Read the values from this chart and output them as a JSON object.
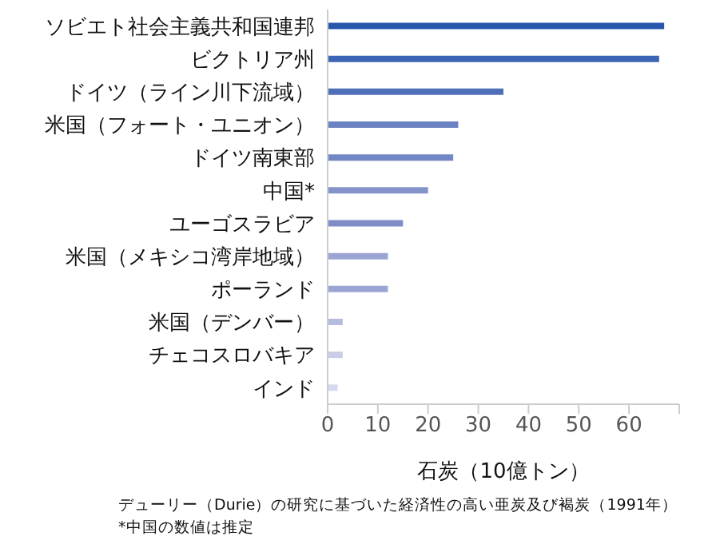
{
  "chart_data": {
    "type": "bar",
    "orientation": "horizontal",
    "categories": [
      "ソビエト社会主義共和国連邦",
      "ビクトリア州",
      "ドイツ（ライン川下流域）",
      "米国（フォート・ユニオン）",
      "ドイツ南東部",
      "中国*",
      "ユーゴスラビア",
      "米国（メキシコ湾岸地域）",
      "ポーランド",
      "米国（デンバー）",
      "チェコスロバキア",
      "インド"
    ],
    "values": [
      67,
      66,
      35,
      26,
      25,
      20,
      15,
      12,
      12,
      3,
      3,
      2
    ],
    "colors": [
      "#2756ad",
      "#3d65b5",
      "#4e70b8",
      "#6a81c2",
      "#7387c6",
      "#8494cb",
      "#7f8cc8",
      "#9aa5d4",
      "#9ba5d4",
      "#b4bce0",
      "#c8cde8",
      "#d6daee"
    ],
    "xlabel": "石炭（10億トン）",
    "xlim": [
      0,
      70
    ],
    "xticks": [
      0,
      10,
      20,
      30,
      40,
      50,
      60,
      {
        "value": 70,
        "label": null
      }
    ],
    "grid": false,
    "legend": false,
    "annotations": [
      "デューリー（Durie）の研究に基づいた経済性の高い亜炭及び褐炭（1991年）",
      "*中国の数値は推定"
    ]
  }
}
